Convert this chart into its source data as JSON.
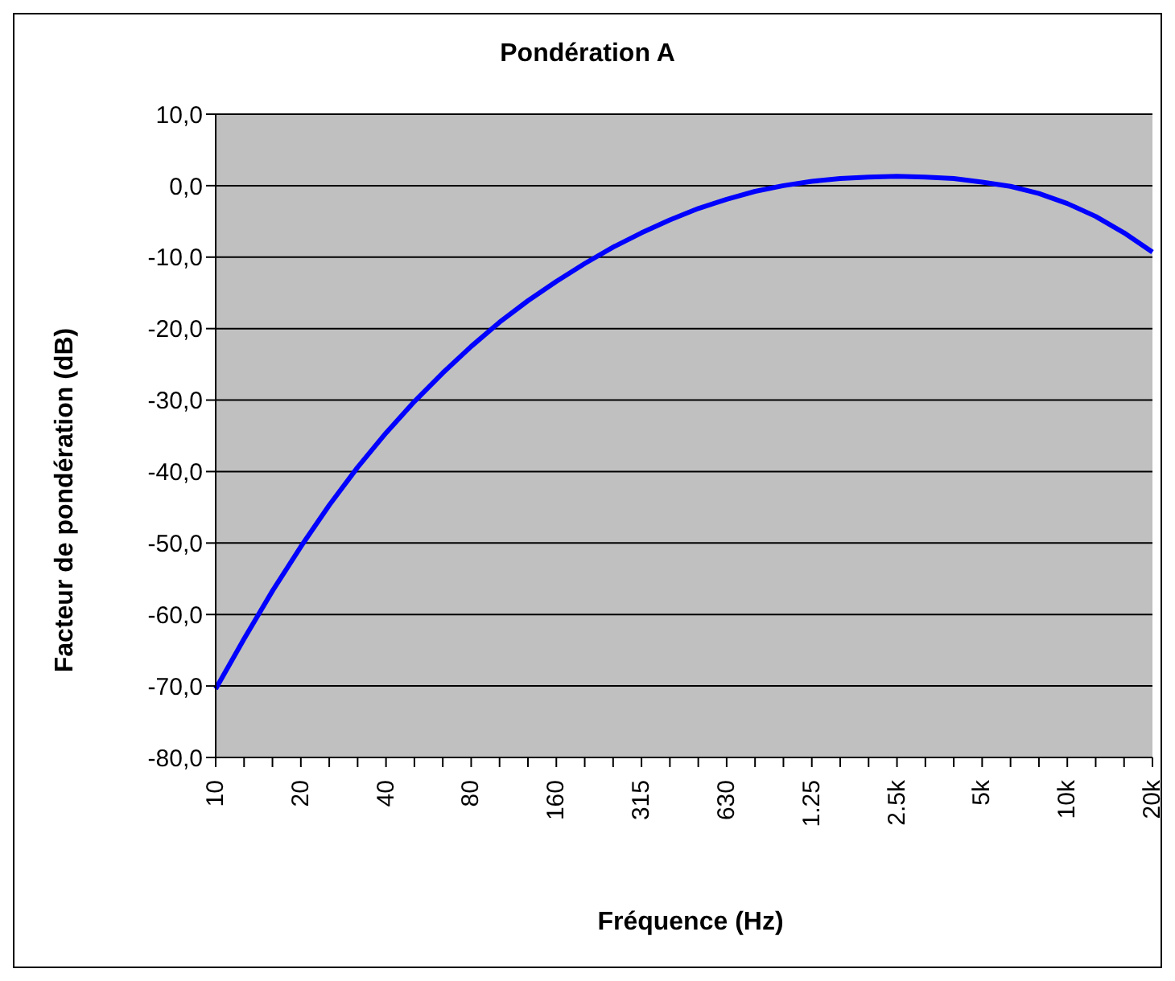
{
  "chart_data": {
    "type": "line",
    "title": "Pondération A",
    "xlabel": "Fréquence (Hz)",
    "ylabel": "Facteur de pondération (dB)",
    "categories": [
      "10",
      null,
      null,
      "20",
      null,
      null,
      "40",
      null,
      null,
      "80",
      null,
      null,
      "160",
      null,
      null,
      "315",
      null,
      null,
      "630",
      null,
      null,
      "1.25",
      null,
      null,
      "2.5k",
      null,
      null,
      "5k",
      null,
      null,
      "10k",
      null,
      null,
      "20k"
    ],
    "series": [
      {
        "color": "#0000ff",
        "values": [
          -70.4,
          -63.4,
          -56.7,
          -50.5,
          -44.7,
          -39.4,
          -34.6,
          -30.2,
          -26.2,
          -22.5,
          -19.1,
          -16.1,
          -13.4,
          -10.9,
          -8.6,
          -6.6,
          -4.8,
          -3.2,
          -1.9,
          -0.8,
          0,
          0.6,
          1.0,
          1.2,
          1.3,
          1.2,
          1.0,
          0.5,
          -0.1,
          -1.1,
          -2.5,
          -4.3,
          -6.6,
          -9.3
        ]
      }
    ],
    "ylim": [
      -80,
      10
    ],
    "yticks": [
      {
        "value": -80,
        "label": "-80,0"
      },
      {
        "value": -70,
        "label": "-70,0"
      },
      {
        "value": -60,
        "label": "-60,0"
      },
      {
        "value": -50,
        "label": "-50,0"
      },
      {
        "value": -40,
        "label": "-40,0"
      },
      {
        "value": -30,
        "label": "-30,0"
      },
      {
        "value": -20,
        "label": "-20,0"
      },
      {
        "value": -10,
        "label": "-10,0"
      },
      {
        "value": 0,
        "label": "0,0"
      },
      {
        "value": 10,
        "label": "10,0"
      }
    ],
    "grid": "y",
    "legend": false,
    "marker": "none",
    "line_style": "solid"
  }
}
